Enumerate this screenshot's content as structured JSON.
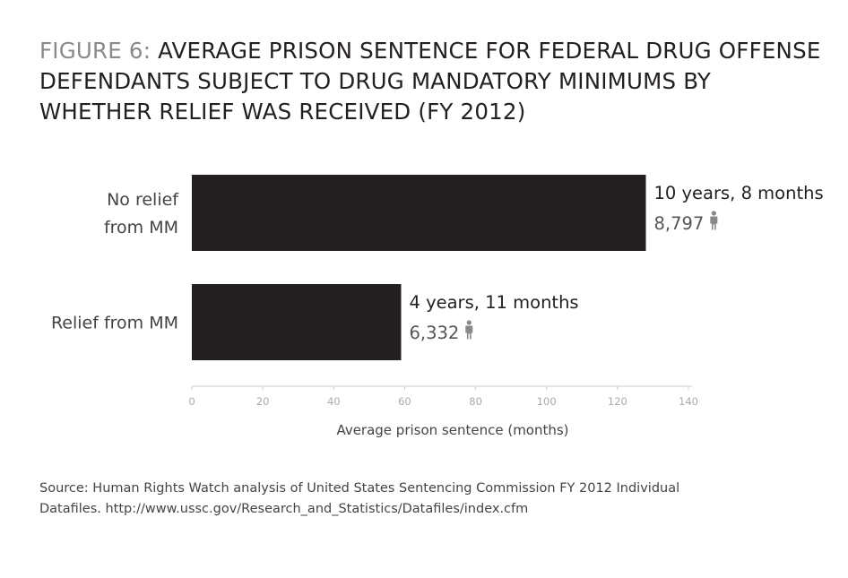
{
  "title": {
    "figure_label": "FIGURE 6:",
    "text": " AVERAGE PRISON SENTENCE FOR FEDERAL DRUG OFFENSE DEFENDANTS SUBJECT TO DRUG MANDATORY MINIMUMS BY WHETHER RELIEF WAS RECEIVED (FY 2012)"
  },
  "source": {
    "line1": "Source: Human Rights Watch analysis of United States Sentencing Commission FY 2012 Individual",
    "line2": "Datafiles. http://www.ussc.gov/Research_and_Statistics/Datafiles/index.cfm"
  },
  "colors": {
    "bar": "#231f20",
    "axis": "#cccccc",
    "tick_label": "#aaaaaa",
    "person_icon": "#888888"
  },
  "chart_data": {
    "type": "bar",
    "orientation": "horizontal",
    "categories": [
      [
        "No relief",
        "from MM"
      ],
      [
        "Relief from MM"
      ]
    ],
    "values": [
      128,
      59
    ],
    "data_labels": [
      "10 years, 8 months",
      "4 years, 11 months"
    ],
    "counts": [
      "8,797",
      "6,332"
    ],
    "count_icon": "person-icon",
    "xlabel": "Average prison sentence (months)",
    "ylabel": "",
    "xlim": [
      0,
      140
    ],
    "xticks": [
      0,
      20,
      40,
      60,
      80,
      100,
      120,
      140
    ],
    "grid": false
  }
}
